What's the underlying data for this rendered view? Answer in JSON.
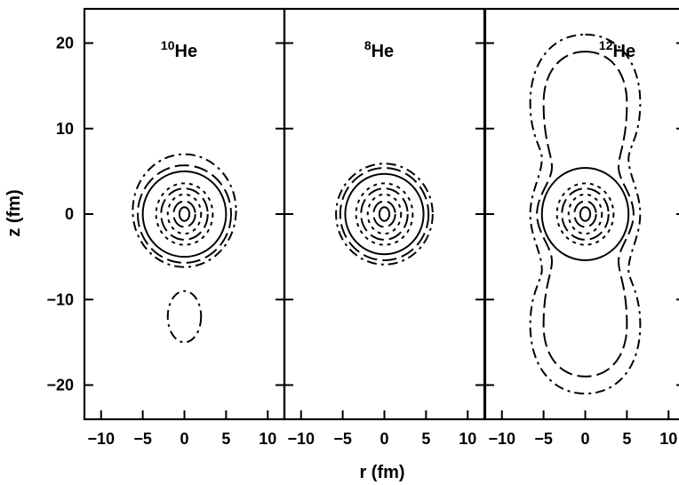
{
  "chart_data": {
    "type": "contour",
    "xlabel": "r (fm)",
    "ylabel": "z (fm)",
    "xlim": [
      -12,
      12
    ],
    "ylim": [
      -24,
      24
    ],
    "x_ticks": [
      -10,
      -5,
      0,
      5,
      10
    ],
    "y_ticks": [
      20,
      10,
      0,
      -10,
      -20
    ],
    "x_tick_labels": [
      "−10",
      "−5",
      "0",
      "5",
      "10"
    ],
    "y_tick_labels": [
      "20",
      "10",
      "0",
      "−10",
      "−20"
    ],
    "grid": false,
    "panels": [
      {
        "mass_number": "10",
        "element": "He",
        "contours": [
          {
            "style": "solid",
            "shape": "ellipse",
            "center": [
              0,
              0
            ],
            "rx": 0.6,
            "rz": 0.8
          },
          {
            "style": "long-dash",
            "shape": "ellipse",
            "center": [
              0,
              0
            ],
            "rx": 1.3,
            "rz": 1.5
          },
          {
            "style": "dotted",
            "shape": "ellipse",
            "center": [
              0,
              0
            ],
            "rx": 2.0,
            "rz": 2.3
          },
          {
            "style": "long-dash",
            "shape": "ellipse",
            "center": [
              0,
              0
            ],
            "rx": 2.8,
            "rz": 3.0
          },
          {
            "style": "dotted",
            "shape": "ellipse",
            "center": [
              0,
              0
            ],
            "rx": 3.4,
            "rz": 3.6
          },
          {
            "style": "solid",
            "shape": "ellipse",
            "center": [
              0,
              0
            ],
            "rx": 5.0,
            "rz": 5.0
          },
          {
            "style": "long-dash",
            "shape": "ellipse",
            "center": [
              0,
              0
            ],
            "rx": 5.6,
            "rz": 5.7
          },
          {
            "style": "dash-dot",
            "shape": "ellipse",
            "center": [
              0,
              0.4
            ],
            "rx": 6.2,
            "rz": 6.6
          },
          {
            "style": "dash-dot",
            "shape": "ellipse",
            "center": [
              0,
              -12
            ],
            "rx": 2.0,
            "rz": 3.0
          }
        ]
      },
      {
        "mass_number": "8",
        "element": "He",
        "contours": [
          {
            "style": "solid",
            "shape": "ellipse",
            "center": [
              0,
              0
            ],
            "rx": 0.6,
            "rz": 0.8
          },
          {
            "style": "long-dash",
            "shape": "ellipse",
            "center": [
              0,
              0
            ],
            "rx": 1.3,
            "rz": 1.5
          },
          {
            "style": "dotted",
            "shape": "ellipse",
            "center": [
              0,
              0
            ],
            "rx": 2.0,
            "rz": 2.3
          },
          {
            "style": "long-dash",
            "shape": "ellipse",
            "center": [
              0,
              0
            ],
            "rx": 2.8,
            "rz": 3.0
          },
          {
            "style": "dotted",
            "shape": "ellipse",
            "center": [
              0,
              0
            ],
            "rx": 3.4,
            "rz": 3.6
          },
          {
            "style": "solid",
            "shape": "ellipse",
            "center": [
              0,
              0
            ],
            "rx": 4.7,
            "rz": 4.7
          },
          {
            "style": "long-dash",
            "shape": "ellipse",
            "center": [
              0,
              0
            ],
            "rx": 5.3,
            "rz": 5.4
          },
          {
            "style": "dash-dot",
            "shape": "ellipse",
            "center": [
              0,
              0
            ],
            "rx": 5.8,
            "rz": 5.9
          }
        ]
      },
      {
        "mass_number": "12",
        "element": "He",
        "contours": [
          {
            "style": "solid",
            "shape": "ellipse",
            "center": [
              0,
              0
            ],
            "rx": 0.6,
            "rz": 0.8
          },
          {
            "style": "long-dash",
            "shape": "ellipse",
            "center": [
              0,
              0
            ],
            "rx": 1.3,
            "rz": 1.5
          },
          {
            "style": "dotted",
            "shape": "ellipse",
            "center": [
              0,
              0
            ],
            "rx": 2.0,
            "rz": 2.3
          },
          {
            "style": "long-dash",
            "shape": "ellipse",
            "center": [
              0,
              0
            ],
            "rx": 2.8,
            "rz": 3.0
          },
          {
            "style": "dotted",
            "shape": "ellipse",
            "center": [
              0,
              0
            ],
            "rx": 3.4,
            "rz": 3.6
          },
          {
            "style": "solid",
            "shape": "ellipse",
            "center": [
              0,
              0
            ],
            "rx": 5.2,
            "rz": 5.4
          },
          {
            "style": "long-dash",
            "shape": "lobed",
            "equator_half_width": 5.8,
            "lobe_half_width": 5.0,
            "neck_half_width": 4.0,
            "lobe_center_z": 13.0,
            "top_z": 19.0,
            "neck_z": 5.5
          },
          {
            "style": "dash-dot",
            "shape": "lobed",
            "equator_half_width": 6.6,
            "lobe_half_width": 6.6,
            "neck_half_width": 5.2,
            "lobe_center_z": 13.0,
            "top_z": 21.0,
            "neck_z": 6.5
          }
        ]
      }
    ]
  }
}
